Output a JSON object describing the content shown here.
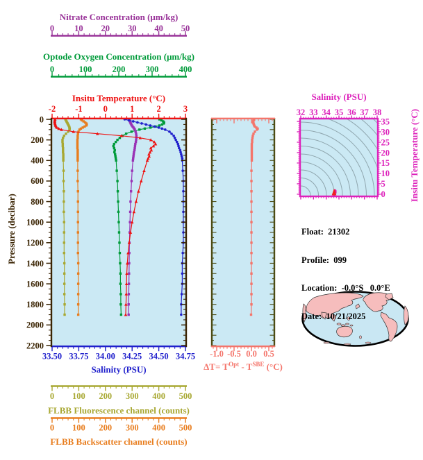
{
  "axes": {
    "nitrate": {
      "title": "Nitrate Concentration (μm/kg)",
      "color": "#993399",
      "tick_values": [
        0,
        10,
        20,
        30,
        40,
        50
      ],
      "tick_labels": [
        "0",
        "10",
        "20",
        "30",
        "40",
        "50"
      ],
      "minor_step": 2,
      "range": [
        0,
        50
      ]
    },
    "oxygen": {
      "title": "Optode Oxygen Concentration (μm/kg)",
      "color": "#009B3A",
      "tick_values": [
        0,
        100,
        200,
        300,
        400
      ],
      "tick_labels": [
        "0",
        "100",
        "200",
        "300",
        "400"
      ],
      "minor_step": 20,
      "range": [
        0,
        400
      ]
    },
    "temperature": {
      "title": "Insitu Temperature (°C)",
      "color": "#EE1111",
      "tick_values": [
        -2,
        -1,
        0,
        1,
        2,
        3
      ],
      "tick_labels": [
        "-2",
        "-1",
        "0",
        "1",
        "2",
        "3"
      ],
      "minor_step": 0.2,
      "range": [
        -2,
        3
      ]
    },
    "pressure": {
      "title": "Pressure (decibar)",
      "color": "#3B2504",
      "tick_values": [
        0,
        200,
        400,
        600,
        800,
        1000,
        1200,
        1400,
        1600,
        1800,
        2000,
        2200
      ],
      "tick_labels": [
        "0",
        "200",
        "400",
        "600",
        "800",
        "1000",
        "1200",
        "1400",
        "1600",
        "1800",
        "2000",
        "2200"
      ],
      "minor_step": 50,
      "range": [
        0,
        2200
      ]
    },
    "salinity": {
      "title": "Salinity (PSU)",
      "color": "#2020CC",
      "tick_values": [
        33.5,
        33.75,
        34.0,
        34.25,
        34.5,
        34.75
      ],
      "tick_labels": [
        "33.50",
        "33.75",
        "34.00",
        "34.25",
        "34.50",
        "34.75"
      ],
      "minor_step": 0.05,
      "range": [
        33.5,
        34.75
      ]
    },
    "fluorescence": {
      "title": "FLBB Fluorescence channel (counts)",
      "color": "#A8A832",
      "tick_values": [
        0,
        100,
        200,
        300,
        400,
        500
      ],
      "tick_labels": [
        "0",
        "100",
        "200",
        "300",
        "400",
        "500"
      ],
      "minor_step": 20,
      "range": [
        0,
        500
      ]
    },
    "backscatter": {
      "title": "FLBB Backscatter channel (counts)",
      "color": "#E87D1E",
      "tick_values": [
        0,
        100,
        200,
        300,
        400,
        500
      ],
      "tick_labels": [
        "0",
        "100",
        "200",
        "300",
        "400",
        "500"
      ],
      "minor_step": 20,
      "range": [
        0,
        500
      ]
    },
    "delta_t": {
      "title_p1": "ΔT= T",
      "title_sup1": "Opt",
      "title_p2": " - T",
      "title_sup2": "SBE",
      "title_p3": " (°C)",
      "color": "#F4756B",
      "tick_values": [
        -1.0,
        -0.5,
        0.0,
        0.5
      ],
      "tick_labels": [
        "-1.0",
        "-0.5",
        "0.0",
        "0.5"
      ],
      "minor_step": 0.1,
      "range": [
        -1.12,
        0.64
      ]
    },
    "ts_salinity": {
      "title": "Salinity (PSU)",
      "color": "#DD22BB",
      "tick_values": [
        32,
        33,
        34,
        35,
        36,
        37,
        38
      ],
      "tick_labels": [
        "32",
        "33",
        "34",
        "35",
        "36",
        "37",
        "38"
      ],
      "minor_step": 0.2,
      "range": [
        32,
        38
      ]
    },
    "ts_temperature": {
      "title": "Insitu Temperature (°C)",
      "color": "#DD22BB",
      "tick_values": [
        0,
        5,
        10,
        15,
        20,
        25,
        30,
        35
      ],
      "tick_labels": [
        "0",
        "5",
        "10",
        "15",
        "20",
        "25",
        "30",
        "35"
      ],
      "minor_step": 1,
      "range": [
        -0.7,
        36
      ]
    }
  },
  "float_info": {
    "line1": "Float:  21302",
    "line2": "Profile:  099",
    "line3": "Location:  -0.0°S   0.0°E",
    "line4": "Date:  10/21/2025"
  },
  "colors": {
    "panel_bg": "#CBE9F4",
    "map_ocean": "#C9E7F3",
    "map_land": "#F6BDBD",
    "contour": "#8FA6AE",
    "mid_border": "#4C4C14",
    "ts_scatter": "#E8169B",
    "ts_apex": "#EE2222"
  },
  "chart_data": [
    {
      "id": "main-profiles",
      "type": "line",
      "ylabel": "Pressure (decibar)",
      "ylim": [
        0,
        2200
      ],
      "y_inverted": true,
      "pressure": [
        0,
        10,
        20,
        30,
        40,
        50,
        60,
        70,
        80,
        90,
        100,
        120,
        140,
        160,
        180,
        200,
        220,
        240,
        260,
        280,
        300,
        320,
        340,
        360,
        380,
        400,
        500,
        600,
        700,
        800,
        900,
        1000,
        1100,
        1200,
        1300,
        1400,
        1500,
        1600,
        1700,
        1800,
        1900
      ],
      "series": [
        {
          "name": "FLBB Fluorescence channel",
          "units": "counts",
          "color": "#A8A832",
          "marker": "square",
          "xlim": [
            0,
            500
          ],
          "values": [
            50,
            52,
            54,
            56,
            58,
            60,
            62,
            64,
            65,
            66,
            65,
            60,
            52,
            45,
            41,
            39,
            39,
            40,
            40,
            41,
            41,
            41,
            42,
            42,
            42,
            42,
            43,
            43,
            44,
            44,
            44,
            45,
            45,
            45,
            45,
            46,
            46,
            46,
            46,
            47,
            47
          ]
        },
        {
          "name": "FLBB Backscatter channel",
          "units": "counts",
          "color": "#E87D1E",
          "marker": "square",
          "xlim": [
            0,
            500
          ],
          "values": [
            108,
            112,
            118,
            124,
            128,
            130,
            128,
            122,
            115,
            108,
            103,
            99,
            97,
            96,
            96,
            95,
            95,
            95,
            95,
            95,
            96,
            96,
            96,
            96,
            96,
            96,
            96,
            96,
            97,
            97,
            97,
            97,
            97,
            97,
            97,
            98,
            98,
            98,
            98,
            98,
            98
          ]
        },
        {
          "name": "Optode Oxygen Concentration",
          "units": "μm/kg",
          "color": "#009B3A",
          "marker": "square",
          "xlim": [
            0,
            400
          ],
          "values": [
            322,
            328,
            333,
            336,
            335,
            330,
            322,
            310,
            295,
            278,
            262,
            238,
            222,
            211,
            203,
            196,
            191,
            186,
            184,
            186,
            188,
            187,
            189,
            190,
            191,
            192,
            194,
            196,
            197,
            198,
            199,
            200,
            201,
            202,
            203,
            204,
            205,
            205,
            206,
            206,
            207
          ]
        },
        {
          "name": "Nitrate Concentration",
          "units": "μm/kg",
          "color": "#9932B5",
          "marker": "square",
          "xlim": [
            0,
            50
          ],
          "values": [
            29,
            29.1,
            29.2,
            29.3,
            29.5,
            29.7,
            29.9,
            30.2,
            30.5,
            30.8,
            31,
            31.3,
            31.5,
            31.6,
            31.6,
            31.5,
            31.4,
            31.2,
            31.1,
            31,
            30.9,
            30.7,
            30.6,
            30.5,
            30.4,
            30.3,
            30,
            29.8,
            29.6,
            29.4,
            29.3,
            29.2,
            29.1,
            29,
            28.95,
            28.9,
            28.85,
            28.8,
            28.75,
            28.7,
            28.7
          ]
        },
        {
          "name": "Salinity",
          "units": "PSU",
          "color": "#2020CC",
          "marker": "circle",
          "xlim": [
            33.5,
            34.75
          ],
          "values": [
            34.18,
            34.22,
            34.26,
            34.3,
            34.34,
            34.38,
            34.42,
            34.46,
            34.5,
            34.53,
            34.56,
            34.6,
            34.62,
            34.64,
            34.65,
            34.66,
            34.67,
            34.68,
            34.685,
            34.69,
            34.7,
            34.705,
            34.71,
            34.715,
            34.72,
            34.72,
            34.725,
            34.73,
            34.73,
            34.73,
            34.73,
            34.73,
            34.73,
            34.73,
            34.725,
            34.72,
            34.72,
            34.72,
            34.715,
            34.71,
            34.71
          ]
        },
        {
          "name": "Insitu Temperature",
          "units": "°C",
          "color": "#EE1111",
          "marker": "triangle",
          "xlim": [
            -2,
            3
          ],
          "values": [
            -1.89,
            -1.9,
            -1.9,
            -1.9,
            -1.89,
            -1.88,
            -1.87,
            -1.85,
            -1.82,
            -1.75,
            -1.65,
            -1.2,
            -0.3,
            0.6,
            1.3,
            1.7,
            1.83,
            1.88,
            1.8,
            1.7,
            1.72,
            1.67,
            1.63,
            1.64,
            1.6,
            1.57,
            1.45,
            1.34,
            1.24,
            1.15,
            1.07,
            1.0,
            0.94,
            0.89,
            0.85,
            0.82,
            0.8,
            0.79,
            0.78,
            0.77,
            0.76
          ]
        }
      ]
    },
    {
      "id": "delta-t",
      "type": "line",
      "xlabel": "ΔT= TOpt - TSBE (°C)",
      "xlim": [
        -1.12,
        0.64
      ],
      "color": "#F4756B",
      "marker": "square",
      "ylim": [
        0,
        2200
      ],
      "y_inverted": true,
      "pressure": [
        0,
        10,
        20,
        30,
        40,
        50,
        60,
        70,
        80,
        90,
        100,
        120,
        140,
        160,
        180,
        200,
        220,
        240,
        260,
        280,
        300,
        320,
        340,
        360,
        380,
        400,
        500,
        600,
        700,
        800,
        900,
        1000,
        1100,
        1200,
        1300,
        1400,
        1500,
        1600,
        1700,
        1800,
        1900
      ],
      "values": [
        0.06,
        0.06,
        0.05,
        0.05,
        0.06,
        0.07,
        0.08,
        0.1,
        0.14,
        0.18,
        0.16,
        0.1,
        0.06,
        0.04,
        0.03,
        0.02,
        0.02,
        0.01,
        0.01,
        0.01,
        0.01,
        0.01,
        0.01,
        0.01,
        0.01,
        0.01,
        0,
        0,
        0,
        0,
        0,
        0,
        0,
        0,
        0,
        0,
        0,
        0,
        0,
        0,
        -0.01
      ]
    },
    {
      "id": "ts-diagram",
      "type": "scatter",
      "xlabel": "Salinity (PSU)",
      "ylabel": "Insitu Temperature (°C)",
      "xlim": [
        32,
        38
      ],
      "ylim": [
        -0.7,
        36
      ],
      "color": "#E8169B",
      "note": "gray isopycnal-style contour arcs on light blue background; data cluster near S 34.2-34.73, T -1.9 to 1.9",
      "x": [
        34.18,
        34.22,
        34.26,
        34.3,
        34.34,
        34.38,
        34.42,
        34.46,
        34.5,
        34.53,
        34.56,
        34.6,
        34.62,
        34.64,
        34.65,
        34.66,
        34.67,
        34.68,
        34.685,
        34.69,
        34.7,
        34.705,
        34.71,
        34.715,
        34.72,
        34.72,
        34.725,
        34.73,
        34.73,
        34.73,
        34.73,
        34.73,
        34.73,
        34.73,
        34.725,
        34.72,
        34.72,
        34.72,
        34.715,
        34.71,
        34.71
      ],
      "y": [
        -1.89,
        -1.9,
        -1.9,
        -1.9,
        -1.89,
        -1.88,
        -1.87,
        -1.85,
        -1.82,
        -1.75,
        -1.65,
        -1.2,
        -0.3,
        0.6,
        1.3,
        1.7,
        1.83,
        1.88,
        1.8,
        1.7,
        1.72,
        1.67,
        1.63,
        1.64,
        1.6,
        1.57,
        1.45,
        1.34,
        1.24,
        1.15,
        1.07,
        1.0,
        0.94,
        0.89,
        0.85,
        0.82,
        0.8,
        0.79,
        0.78,
        0.77,
        0.76
      ]
    }
  ]
}
